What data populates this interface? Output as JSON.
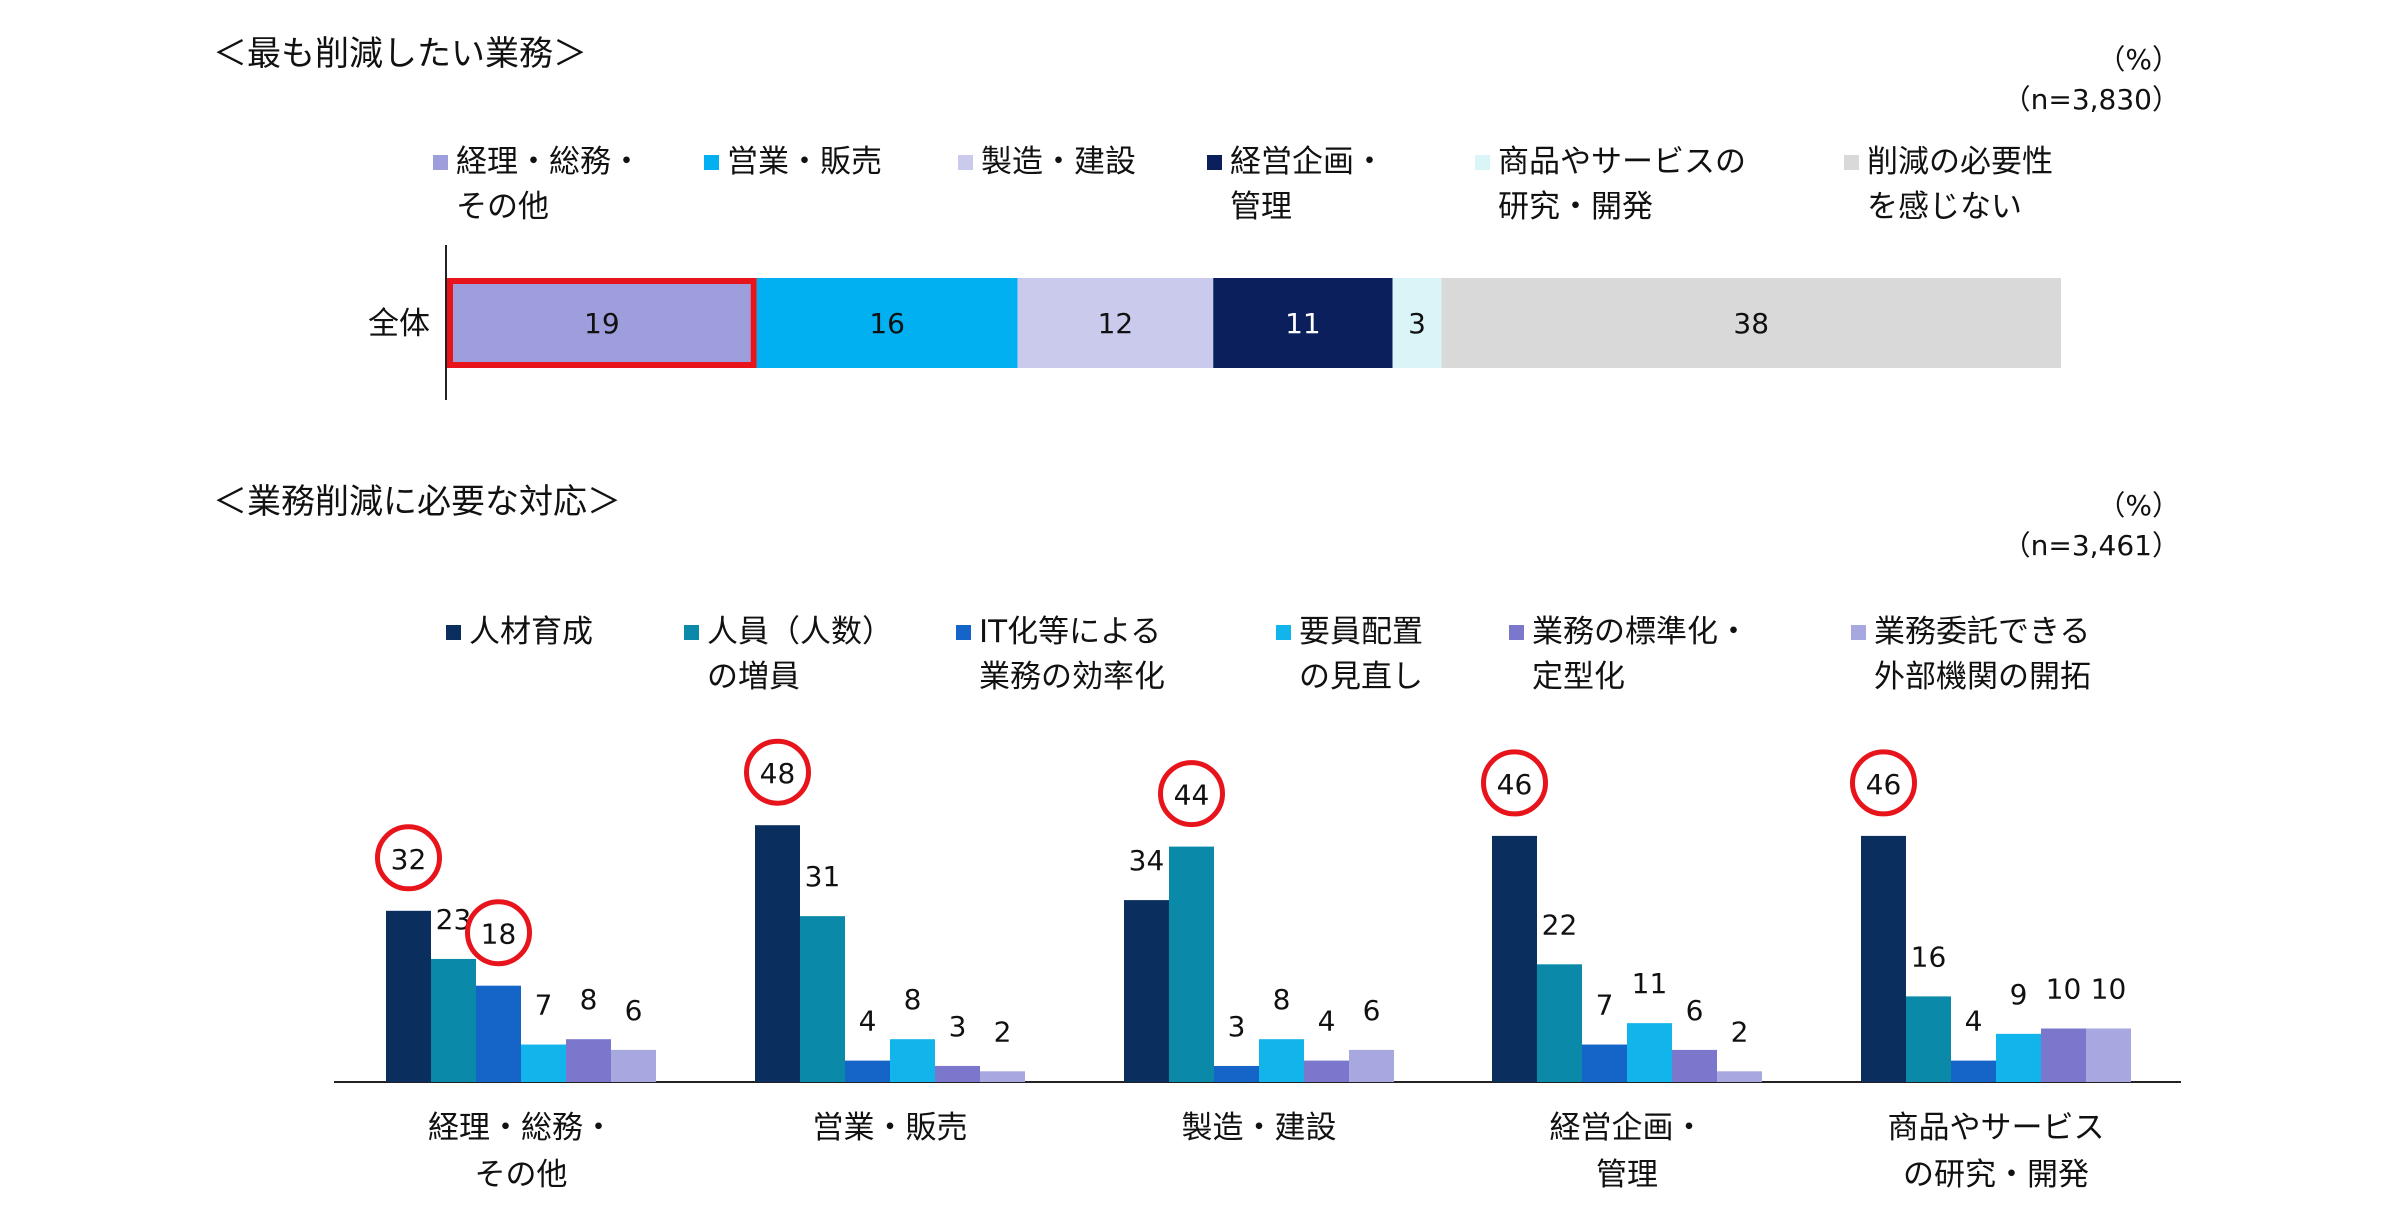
{
  "top": {
    "title": "＜最も削減したい業務＞",
    "unit": "（%）",
    "n": "（n=3,830）",
    "legend": [
      {
        "label": "経理・総務・\nその他",
        "color": "#9e9edc"
      },
      {
        "label": "営業・販売",
        "color": "#00b0f0"
      },
      {
        "label": "製造・建設",
        "color": "#cacaec"
      },
      {
        "label": "経営企画・\n管理",
        "color": "#0b1f5c"
      },
      {
        "label": "商品やサービスの\n研究・開発",
        "color": "#daf5f8"
      },
      {
        "label": "削減の必要性\nを感じない",
        "color": "#d9d9d9"
      }
    ]
  },
  "bottom": {
    "title": "＜業務削減に必要な対応＞",
    "unit": "（%）",
    "n": "（n=3,461）",
    "legend": [
      {
        "label": "人材育成",
        "color": "#0a2f5e"
      },
      {
        "label": "人員（人数）\nの増員",
        "color": "#0a8aa8"
      },
      {
        "label": "IT化等による\n業務の効率化",
        "color": "#1565c8"
      },
      {
        "label": "要員配置\nの見直し",
        "color": "#12b4ec"
      },
      {
        "label": "業務の標準化・\n定型化",
        "color": "#7a77cc"
      },
      {
        "label": "業務委託できる\n外部機関の開拓",
        "color": "#a6a8df"
      }
    ]
  },
  "chart_data": [
    {
      "type": "bar",
      "orientation": "horizontal-stacked",
      "categories": [
        "全体"
      ],
      "series": [
        {
          "name": "経理・総務・その他",
          "values": [
            19
          ]
        },
        {
          "name": "営業・販売",
          "values": [
            16
          ]
        },
        {
          "name": "製造・建設",
          "values": [
            12
          ]
        },
        {
          "name": "経営企画・管理",
          "values": [
            11
          ]
        },
        {
          "name": "商品やサービスの研究・開発",
          "values": [
            3
          ]
        },
        {
          "name": "削減の必要性を感じない",
          "values": [
            38
          ]
        }
      ],
      "highlighted": [
        {
          "category": "全体",
          "series": "経理・総務・その他"
        }
      ]
    },
    {
      "type": "bar",
      "orientation": "vertical-grouped",
      "categories": [
        "経理・総務・\nその他",
        "営業・販売",
        "製造・建設",
        "経営企画・\n管理",
        "商品やサービス\nの研究・開発"
      ],
      "series": [
        {
          "name": "人材育成",
          "values": [
            32,
            48,
            34,
            46,
            46
          ]
        },
        {
          "name": "人員（人数）の増員",
          "values": [
            23,
            31,
            44,
            22,
            16
          ]
        },
        {
          "name": "IT化等による業務の効率化",
          "values": [
            18,
            4,
            3,
            7,
            4
          ]
        },
        {
          "name": "要員配置の見直し",
          "values": [
            7,
            8,
            8,
            11,
            9
          ]
        },
        {
          "name": "業務の標準化・定型化",
          "values": [
            8,
            3,
            4,
            6,
            10
          ]
        },
        {
          "name": "業務委託できる外部機関の開拓",
          "values": [
            6,
            2,
            6,
            2,
            10
          ]
        }
      ],
      "circled": [
        [
          0,
          0
        ],
        [
          0,
          2
        ],
        [
          1,
          0
        ],
        [
          2,
          1
        ],
        [
          3,
          0
        ],
        [
          4,
          0
        ]
      ]
    }
  ]
}
